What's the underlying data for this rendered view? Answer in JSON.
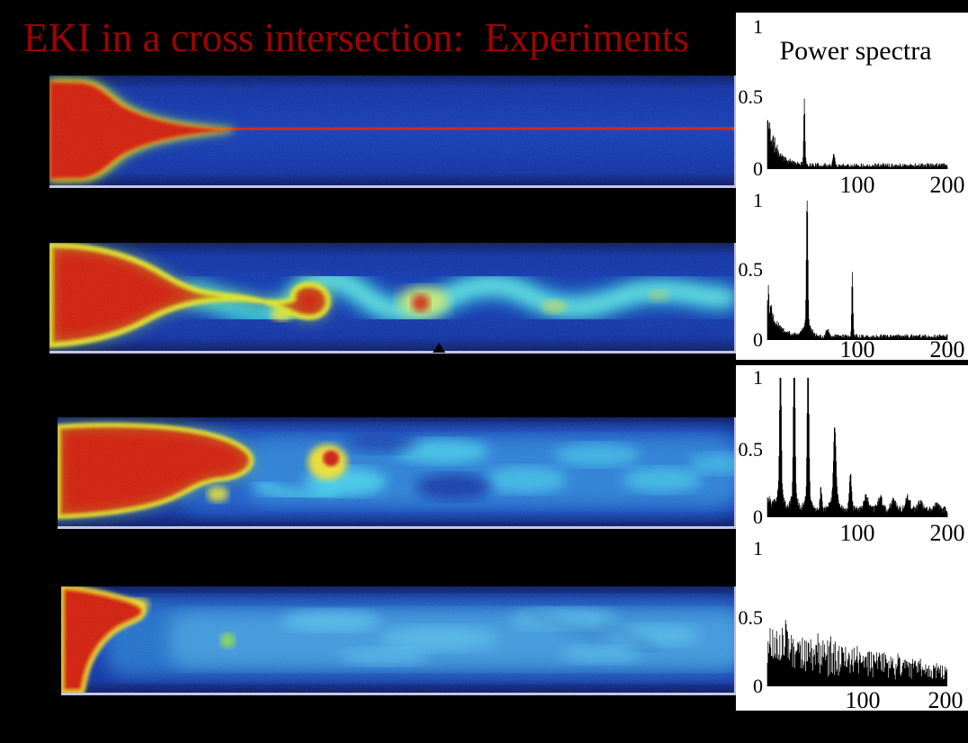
{
  "slide": {
    "title": "EKI in a cross intersection:  Experiments",
    "title_color": "#9e0303",
    "background": "#000000"
  },
  "spectra_panel": {
    "title": "Power spectra",
    "background": "#ffffff",
    "ink": "#000000",
    "ylabels": [
      "1",
      "0.5",
      "0"
    ],
    "xlabels": [
      "100",
      "200"
    ]
  },
  "colors": {
    "flow_blue": "#0d37b4",
    "flow_red": "#d31203",
    "flow_yellow": "#ffe41e",
    "flow_cyan": "#3ae2de",
    "border_lavender": "#c6c6e6"
  },
  "chart_data": [
    {
      "id": "spectrum-1",
      "type": "line",
      "xlim": [
        0,
        200
      ],
      "ylim": [
        0,
        1
      ],
      "xticks": [
        100,
        200
      ],
      "yticks": [
        0,
        0.5,
        1
      ],
      "fstart": 5,
      "step": 0.5,
      "clip": 1,
      "seed": 11,
      "floor": [
        0.012,
        0.03
      ],
      "lowfreq": {
        "amp": 0.42,
        "decay": 10
      },
      "peaks": [
        {
          "freq": 45,
          "amp": 0.46,
          "width": 0.7
        },
        {
          "freq": 77,
          "amp": 0.08,
          "width": 0.9
        }
      ]
    },
    {
      "id": "spectrum-2",
      "type": "line",
      "xlim": [
        0,
        200
      ],
      "ylim": [
        0,
        1
      ],
      "xticks": [
        100,
        200
      ],
      "yticks": [
        0,
        0.5,
        1
      ],
      "fstart": 5,
      "step": 0.5,
      "clip": 1,
      "seed": 22,
      "floor": [
        0.012,
        0.03
      ],
      "lowfreq": {
        "amp": 0.44,
        "decay": 9
      },
      "peaks": [
        {
          "freq": 48,
          "amp": 0.97,
          "width": 0.8
        },
        {
          "freq": 48,
          "amp": 0.1,
          "width": 4
        },
        {
          "freq": 70,
          "amp": 0.05,
          "width": 1.5
        },
        {
          "freq": 97,
          "amp": 0.47,
          "width": 0.7
        }
      ]
    },
    {
      "id": "spectrum-3",
      "type": "line",
      "xlim": [
        0,
        200
      ],
      "ylim": [
        0,
        1
      ],
      "xticks": [
        100,
        200
      ],
      "yticks": [
        0,
        0.5,
        1
      ],
      "fstart": 5,
      "step": 0.5,
      "clip": 1,
      "seed": 33,
      "floor": [
        0.03,
        0.05
      ],
      "lowfreq": {
        "amp": 0.1,
        "decay": 12
      },
      "peaks": [
        {
          "freq": 19,
          "amp": 1.1,
          "width": 0.9
        },
        {
          "freq": 34,
          "amp": 1.1,
          "width": 0.9
        },
        {
          "freq": 49,
          "amp": 1.05,
          "width": 0.9
        },
        {
          "freq": 19,
          "amp": 0.12,
          "width": 3
        },
        {
          "freq": 34,
          "amp": 0.12,
          "width": 3
        },
        {
          "freq": 49,
          "amp": 0.12,
          "width": 3
        },
        {
          "freq": 63,
          "amp": 0.16,
          "width": 1
        },
        {
          "freq": 78,
          "amp": 0.5,
          "width": 1.3
        },
        {
          "freq": 78,
          "amp": 0.1,
          "width": 4
        },
        {
          "freq": 95,
          "amp": 0.27,
          "width": 1.2
        },
        {
          "freq": 112,
          "amp": 0.09,
          "width": 2.5
        },
        {
          "freq": 127,
          "amp": 0.09,
          "width": 2.5
        },
        {
          "freq": 142,
          "amp": 0.07,
          "width": 2.5
        },
        {
          "freq": 157,
          "amp": 0.09,
          "width": 2.5
        },
        {
          "freq": 171,
          "amp": 0.05,
          "width": 2.5
        },
        {
          "freq": 188,
          "amp": 0.04,
          "width": 2.5
        }
      ]
    },
    {
      "id": "spectrum-4",
      "type": "line",
      "xlim": [
        0,
        200
      ],
      "ylim": [
        0,
        1
      ],
      "xticks": [
        100,
        200
      ],
      "yticks": [
        0,
        0.5,
        1
      ],
      "fstart": 5,
      "step": 0.7,
      "clip": 1,
      "seed": 44,
      "floor": [
        0.015,
        0.02
      ],
      "broadband": {
        "start": 0.4,
        "end": 0.12
      },
      "peaks": [
        {
          "freq": 25,
          "amp": 0.12,
          "width": 3
        }
      ]
    }
  ]
}
